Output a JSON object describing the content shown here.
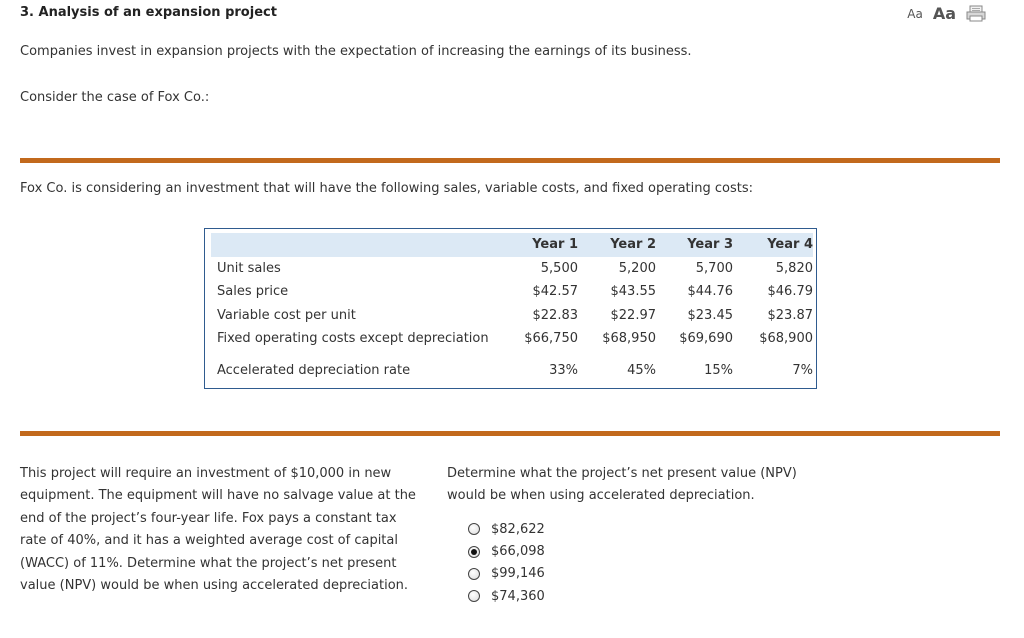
{
  "header": {
    "title": "3. Analysis of an expansion project",
    "font_small_label": "Aa",
    "font_large_label": "Aa"
  },
  "intro": "Companies invest in expansion projects with the expectation of increasing the earnings of its business.",
  "consider": "Consider the case of Fox Co.:",
  "fox_text": "Fox Co. is considering an investment that will have the following sales, variable costs, and fixed operating costs:",
  "table": {
    "headers": [
      "Year 1",
      "Year 2",
      "Year 3",
      "Year 4"
    ],
    "rows": [
      {
        "label": "Unit sales",
        "values": [
          "5,500",
          "5,200",
          "5,700",
          "5,820"
        ]
      },
      {
        "label": "Sales price",
        "values": [
          "$42.57",
          "$43.55",
          "$44.76",
          "$46.79"
        ]
      },
      {
        "label": "Variable cost per unit",
        "values": [
          "$22.83",
          "$22.97",
          "$23.45",
          "$23.87"
        ]
      },
      {
        "label": "Fixed operating costs except depreciation",
        "values": [
          "$66,750",
          "$68,950",
          "$69,690",
          "$68,900"
        ]
      }
    ],
    "depreciation_row": {
      "label": "Accelerated depreciation rate",
      "values": [
        "33%",
        "45%",
        "15%",
        "7%"
      ]
    }
  },
  "left_paragraph": "This project will require an investment of $10,000 in new equipment. The equipment will have no salvage value at the end of the project’s four-year life. Fox pays a constant tax rate of 40%, and it has a weighted average cost of capital (WACC) of 11%. Determine what the project’s net present value (NPV) would be when using accelerated depreciation.",
  "question": "Determine what the project’s net present value (NPV) would be when using accelerated depreciation.",
  "options": [
    {
      "label": "$82,622",
      "selected": false
    },
    {
      "label": "$66,098",
      "selected": true
    },
    {
      "label": "$99,146",
      "selected": false
    },
    {
      "label": "$74,360",
      "selected": false
    }
  ],
  "colors": {
    "accent_rule": "#c2691c",
    "table_border": "#2f5b8f",
    "table_header_bg": "#dce9f5"
  }
}
